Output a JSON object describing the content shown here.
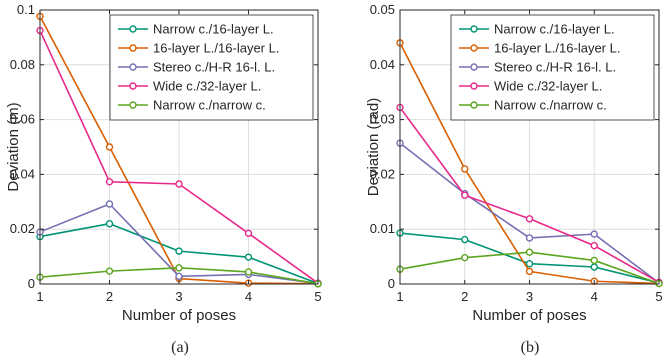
{
  "chart_data": [
    {
      "type": "line",
      "caption": "(a)",
      "xlabel": "Number of poses",
      "ylabel": "Deviation (m)",
      "x": [
        1,
        2,
        3,
        4,
        5
      ],
      "xlim": [
        1,
        5
      ],
      "ylim": [
        0,
        0.1
      ],
      "xticks": [
        "1",
        "2",
        "3",
        "4",
        "5"
      ],
      "yticks": [
        "0",
        "0.02",
        "0.04",
        "0.06",
        "0.08",
        "0.1"
      ],
      "grid": true,
      "legend_position": "top-right",
      "series": [
        {
          "name": "Narrow c./16-layer L.",
          "color": "#009474",
          "values": [
            0.0173,
            0.022,
            0.012,
            0.0098,
            0.0002
          ]
        },
        {
          "name": "16-layer L./16-layer L.",
          "color": "#d95f02",
          "values": [
            0.0977,
            0.05,
            0.002,
            0.0003,
            0.0001
          ]
        },
        {
          "name": "Stereo c./H-R 16-l. L.",
          "color": "#7570b3",
          "values": [
            0.019,
            0.0292,
            0.0028,
            0.0035,
            0.0002
          ]
        },
        {
          "name": "Wide c./32-layer L.",
          "color": "#e7298a",
          "values": [
            0.0925,
            0.0373,
            0.0365,
            0.0185,
            0.0003
          ]
        },
        {
          "name": "Narrow c./narrow c.",
          "color": "#5ba51f",
          "values": [
            0.0025,
            0.0047,
            0.0059,
            0.0044,
            0.0001
          ]
        }
      ]
    },
    {
      "type": "line",
      "caption": "(b)",
      "xlabel": "Number of poses",
      "ylabel": "Deviation (rad)",
      "x": [
        1,
        2,
        3,
        4,
        5
      ],
      "xlim": [
        1,
        5
      ],
      "ylim": [
        0,
        0.05
      ],
      "xticks": [
        "1",
        "2",
        "3",
        "4",
        "5"
      ],
      "yticks": [
        "0",
        "0.01",
        "0.02",
        "0.03",
        "0.04",
        "0.05"
      ],
      "grid": true,
      "legend_position": "top-right",
      "series": [
        {
          "name": "Narrow c./16-layer L.",
          "color": "#009474",
          "values": [
            0.0093,
            0.0081,
            0.0037,
            0.0031,
            0.0002
          ]
        },
        {
          "name": "16-layer L./16-layer L.",
          "color": "#d95f02",
          "values": [
            0.044,
            0.021,
            0.0023,
            0.0005,
            0.0001
          ]
        },
        {
          "name": "Stereo c./H-R 16-l. L.",
          "color": "#7570b3",
          "values": [
            0.0257,
            0.0165,
            0.0084,
            0.0091,
            0.0002
          ]
        },
        {
          "name": "Wide c./32-layer L.",
          "color": "#e7298a",
          "values": [
            0.0322,
            0.0162,
            0.0119,
            0.007,
            0.0003
          ]
        },
        {
          "name": "Narrow c./narrow c.",
          "color": "#5ba51f",
          "values": [
            0.0027,
            0.0048,
            0.0058,
            0.0043,
            0.0001
          ]
        }
      ]
    }
  ]
}
